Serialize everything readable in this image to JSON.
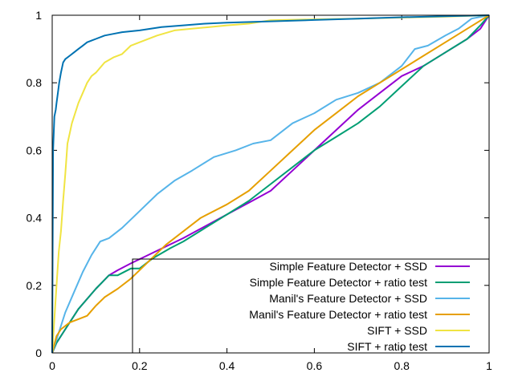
{
  "chart_data": {
    "type": "line",
    "title": "",
    "xlabel": "",
    "ylabel": "",
    "xlim": [
      0,
      1
    ],
    "ylim": [
      0,
      1
    ],
    "xticks": [
      "0",
      "0.2",
      "0.4",
      "0.6",
      "0.8",
      "1"
    ],
    "yticks": [
      "0",
      "0.2",
      "0.4",
      "0.6",
      "0.8",
      "1"
    ],
    "grid": false,
    "legend_position": "bottom-right",
    "series": [
      {
        "name": "Simple Feature Detector + SSD",
        "color": "#9400d3",
        "x": [
          0,
          0.01,
          0.03,
          0.06,
          0.1,
          0.13,
          0.15,
          0.18,
          0.22,
          0.26,
          0.3,
          0.35,
          0.4,
          0.45,
          0.5,
          0.55,
          0.6,
          0.65,
          0.7,
          0.75,
          0.8,
          0.85,
          0.9,
          0.95,
          0.98,
          1
        ],
        "y": [
          0,
          0.03,
          0.07,
          0.13,
          0.19,
          0.23,
          0.245,
          0.265,
          0.29,
          0.315,
          0.34,
          0.375,
          0.41,
          0.445,
          0.48,
          0.54,
          0.6,
          0.66,
          0.72,
          0.77,
          0.82,
          0.85,
          0.89,
          0.93,
          0.96,
          1
        ]
      },
      {
        "name": "Simple Feature Detector + ratio test",
        "color": "#009e73",
        "x": [
          0,
          0.01,
          0.03,
          0.06,
          0.1,
          0.13,
          0.15,
          0.18,
          0.2,
          0.23,
          0.27,
          0.3,
          0.35,
          0.4,
          0.45,
          0.5,
          0.55,
          0.6,
          0.65,
          0.7,
          0.75,
          0.8,
          0.85,
          0.9,
          0.95,
          0.98,
          1
        ],
        "y": [
          0,
          0.03,
          0.07,
          0.13,
          0.19,
          0.23,
          0.23,
          0.25,
          0.25,
          0.28,
          0.31,
          0.33,
          0.37,
          0.41,
          0.45,
          0.5,
          0.55,
          0.6,
          0.64,
          0.68,
          0.73,
          0.79,
          0.85,
          0.89,
          0.93,
          0.97,
          1
        ]
      },
      {
        "name": "Manil's Feature Detector + SSD",
        "color": "#56b4e9",
        "x": [
          0,
          0.01,
          0.02,
          0.03,
          0.05,
          0.07,
          0.09,
          0.11,
          0.13,
          0.16,
          0.2,
          0.24,
          0.28,
          0.32,
          0.37,
          0.42,
          0.46,
          0.5,
          0.55,
          0.6,
          0.65,
          0.7,
          0.75,
          0.8,
          0.83,
          0.86,
          0.9,
          0.93,
          0.96,
          1
        ],
        "y": [
          0,
          0.04,
          0.08,
          0.12,
          0.18,
          0.24,
          0.29,
          0.33,
          0.34,
          0.37,
          0.42,
          0.47,
          0.51,
          0.54,
          0.58,
          0.6,
          0.62,
          0.63,
          0.68,
          0.71,
          0.75,
          0.77,
          0.8,
          0.85,
          0.9,
          0.91,
          0.94,
          0.96,
          0.99,
          1
        ]
      },
      {
        "name": "Manil's Feature Detector + ratio test",
        "color": "#e69f00",
        "x": [
          0,
          0.01,
          0.02,
          0.04,
          0.06,
          0.08,
          0.1,
          0.12,
          0.15,
          0.18,
          0.22,
          0.26,
          0.3,
          0.34,
          0.4,
          0.45,
          0.5,
          0.55,
          0.6,
          0.65,
          0.7,
          0.75,
          0.8,
          0.85,
          0.9,
          0.95,
          1
        ],
        "y": [
          0,
          0.05,
          0.07,
          0.09,
          0.1,
          0.11,
          0.14,
          0.165,
          0.19,
          0.22,
          0.27,
          0.32,
          0.36,
          0.4,
          0.44,
          0.48,
          0.54,
          0.6,
          0.66,
          0.71,
          0.76,
          0.8,
          0.84,
          0.88,
          0.92,
          0.96,
          1
        ]
      },
      {
        "name": "SIFT + SSD",
        "color": "#f0e442",
        "x": [
          0,
          0.005,
          0.01,
          0.015,
          0.02,
          0.025,
          0.03,
          0.035,
          0.04,
          0.045,
          0.05,
          0.06,
          0.07,
          0.08,
          0.09,
          0.1,
          0.12,
          0.14,
          0.16,
          0.18,
          0.2,
          0.24,
          0.28,
          0.32,
          0.36,
          0.4,
          0.45,
          0.5,
          0.6,
          0.7,
          0.8,
          0.9,
          1
        ],
        "y": [
          0,
          0.1,
          0.2,
          0.3,
          0.36,
          0.45,
          0.53,
          0.62,
          0.65,
          0.68,
          0.7,
          0.74,
          0.77,
          0.8,
          0.82,
          0.83,
          0.86,
          0.875,
          0.885,
          0.91,
          0.92,
          0.94,
          0.955,
          0.96,
          0.965,
          0.97,
          0.975,
          0.985,
          0.988,
          0.99,
          0.993,
          0.996,
          1
        ]
      },
      {
        "name": "SIFT + ratio test",
        "color": "#0072b2",
        "x": [
          0,
          0.002,
          0.005,
          0.008,
          0.01,
          0.013,
          0.016,
          0.02,
          0.025,
          0.03,
          0.04,
          0.05,
          0.06,
          0.07,
          0.08,
          0.09,
          0.1,
          0.12,
          0.14,
          0.16,
          0.2,
          0.25,
          0.3,
          0.35,
          0.4,
          0.5,
          0.6,
          0.7,
          0.8,
          0.9,
          1
        ],
        "y": [
          0,
          0.6,
          0.7,
          0.72,
          0.74,
          0.77,
          0.8,
          0.83,
          0.86,
          0.87,
          0.88,
          0.89,
          0.9,
          0.91,
          0.92,
          0.925,
          0.93,
          0.94,
          0.945,
          0.95,
          0.955,
          0.965,
          0.97,
          0.975,
          0.978,
          0.982,
          0.986,
          0.99,
          0.994,
          0.997,
          1
        ]
      }
    ]
  }
}
